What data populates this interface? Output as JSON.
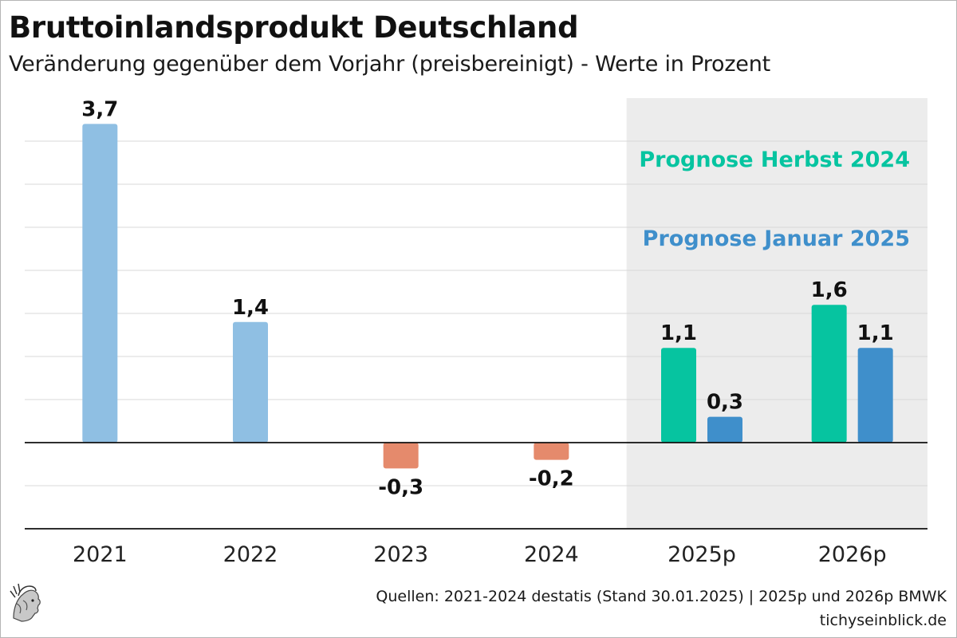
{
  "header": {
    "title": "Bruttoinlandsprodukt Deutschland",
    "subtitle": "Veränderung gegenüber dem Vorjahr (preisbereinigt) - Werte in Prozent"
  },
  "footer": {
    "source": "Quellen: 2021-2024 destatis (Stand 30.01.2025) | 2025p und 2026p BMWK",
    "site": "tichyseinblick.de"
  },
  "colors": {
    "historic": "#8fbfe3",
    "negative": "#e58a6c",
    "herbst": "#06c4a0",
    "januar": "#3f8fcb",
    "forecast_bg": "#ececec",
    "grid": "#d9d9d9",
    "axis": "#111111"
  },
  "chart_data": {
    "type": "bar",
    "categories": [
      "2021",
      "2022",
      "2023",
      "2024",
      "2025p",
      "2026p"
    ],
    "value_labels": {
      "historic": [
        "3,7",
        "1,4",
        "-0,3",
        "-0,2"
      ],
      "herbst": [
        "1,1",
        "1,6"
      ],
      "januar": [
        "0,3",
        "1,1"
      ]
    },
    "series": [
      {
        "key": "historic",
        "values": [
          3.7,
          1.4,
          -0.3,
          -0.2,
          null,
          null
        ]
      },
      {
        "key": "herbst",
        "name": "Prognose Herbst 2024",
        "values": [
          null,
          null,
          null,
          null,
          1.1,
          1.6
        ]
      },
      {
        "key": "januar",
        "name": "Prognose Januar 2025",
        "values": [
          null,
          null,
          null,
          null,
          0.3,
          1.1
        ]
      }
    ],
    "ylim": [
      -1.0,
      4.0
    ],
    "grid": true,
    "forecast_region": [
      "2025p",
      "2026p"
    ],
    "legend": [
      {
        "label": "Prognose Herbst 2024",
        "color": "#06c4a0"
      },
      {
        "label": "Prognose Januar 2025",
        "color": "#3f8fcb"
      }
    ],
    "legend_position": "top-right"
  }
}
